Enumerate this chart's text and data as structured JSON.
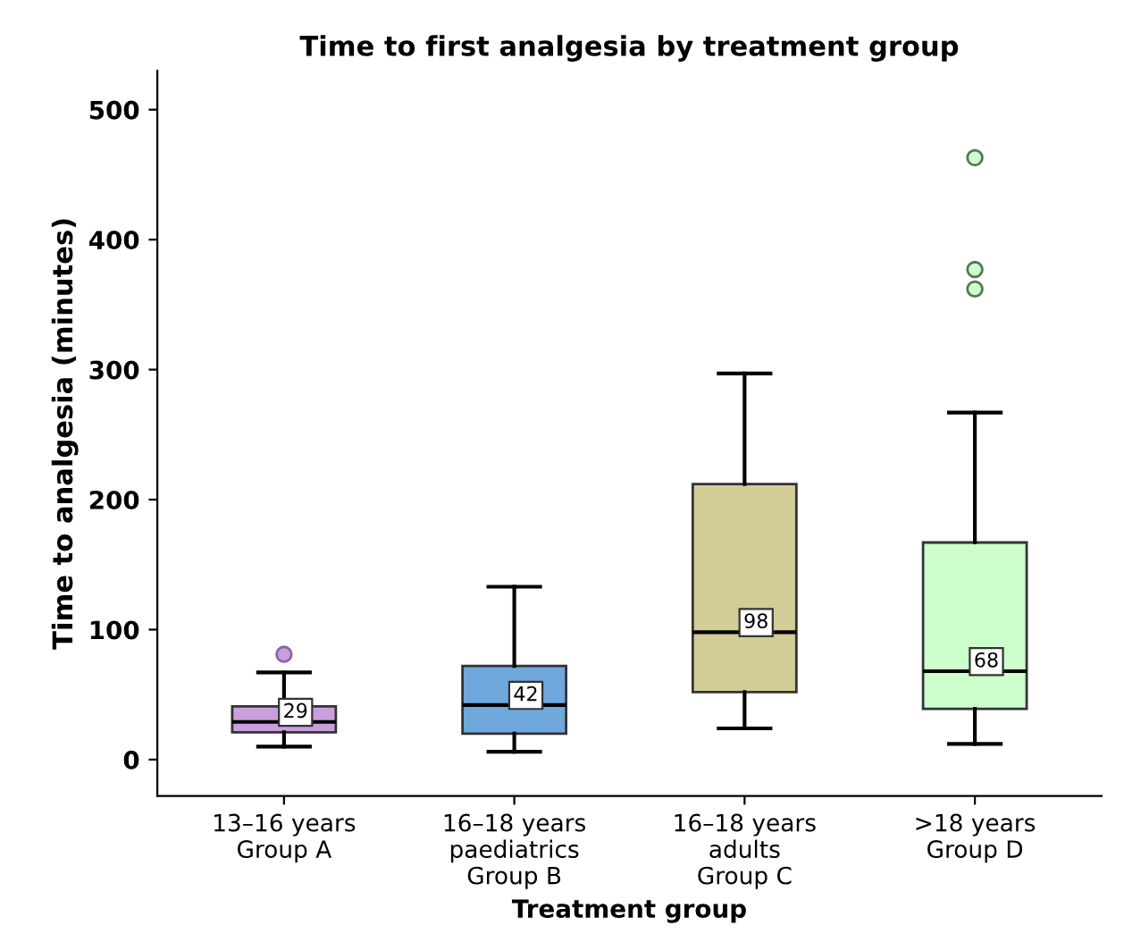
{
  "chart_data": {
    "type": "box",
    "title": "Time to first analgesia by treatment group",
    "xlabel": "Treatment group",
    "ylabel": "Time to analgesia (minutes)",
    "categories": [
      "13–16 years\nGroup A",
      "16–18 years\npaediatrics\nGroup B",
      "16–18 years\nadults\nGroup C",
      ">18 years\nGroup D"
    ],
    "colors": [
      "#c9a0dc",
      "#6fa8dc",
      "#d2cc96",
      "#ccffcc"
    ],
    "boxes": [
      {
        "low": 10,
        "q1": 21,
        "median": 29,
        "q3": 41,
        "high": 67,
        "outliers": [
          81
        ]
      },
      {
        "low": 6,
        "q1": 20,
        "median": 42,
        "q3": 72,
        "high": 133
      },
      {
        "low": 24,
        "q1": 52,
        "median": 98,
        "q3": 212,
        "high": 297
      },
      {
        "low": 12,
        "q1": 39,
        "median": 68,
        "q3": 167,
        "high": 267,
        "outliers": [
          362,
          377,
          463
        ]
      }
    ],
    "annotations": [
      {
        "text": "29",
        "x": "13–16 years\nGroup A",
        "y": 29
      },
      {
        "text": "42",
        "x": "16–18 years\npaediatrics\nGroup B",
        "y": 42
      },
      {
        "text": "98",
        "x": "16–18 years\nadults\nGroup C",
        "y": 98
      },
      {
        "text": "68",
        "x": ">18 years\nGroup D",
        "y": 68
      }
    ],
    "ylim": [
      -28,
      530
    ],
    "yticks": [
      0,
      100,
      200,
      300,
      400,
      500
    ],
    "grid": false,
    "legend": false
  }
}
